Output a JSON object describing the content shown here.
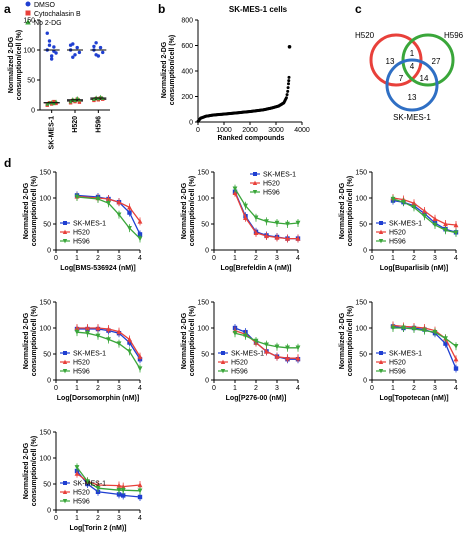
{
  "panels": {
    "a": {
      "letter": "a",
      "ylabel_line1": "Normalized 2-DG",
      "ylabel_line2": "consumption/cell (%)",
      "yticks": [
        "0",
        "50",
        "100",
        "150"
      ],
      "categories": [
        "SK-MES-1",
        "H520",
        "H596"
      ],
      "legend": [
        {
          "label": "DMSO",
          "color": "#1f3fd1",
          "marker": "circle"
        },
        {
          "label": "Cytochalasin B",
          "color": "#e8403a",
          "marker": "square"
        },
        {
          "label": "No 2-DG",
          "color": "#3aa63a",
          "marker": "triangle"
        }
      ],
      "chart_data": {
        "type": "scatter",
        "categories": [
          "SK-MES-1",
          "H520",
          "H596"
        ],
        "ylim": [
          0,
          150
        ],
        "series": [
          {
            "name": "DMSO",
            "means": [
              100,
              100,
              100
            ],
            "points": [
              [
                100,
                115,
                90,
                105,
                95,
                128,
                108,
                85,
                98
              ],
              [
                100,
                110,
                92,
                104,
                96,
                108,
                88
              ],
              [
                100,
                112,
                90,
                104,
                96,
                106,
                92
              ]
            ]
          },
          {
            "name": "Cytochalasin B",
            "means": [
              12,
              15,
              18
            ],
            "points": [
              [
                8,
                12,
                10,
                14,
                11
              ],
              [
                12,
                16,
                14,
                18,
                13
              ],
              [
                16,
                19,
                17,
                20,
                18
              ]
            ]
          },
          {
            "name": "No 2-DG",
            "means": [
              12,
              17,
              20
            ],
            "points": [
              [
                10,
                12,
                13,
                11,
                14
              ],
              [
                14,
                18,
                16,
                20,
                17
              ],
              [
                18,
                21,
                19,
                22,
                20
              ]
            ]
          }
        ]
      }
    },
    "b": {
      "letter": "b",
      "title": "SK-MES-1 cells",
      "ylabel_line1": "Normalized 2-DG",
      "ylabel_line2": "consumption/cell (%)",
      "xlabel": "Ranked compounds",
      "yticks": [
        "0",
        "200",
        "400",
        "600",
        "800"
      ],
      "xticks": [
        "0",
        "1000",
        "2000",
        "3000",
        "4000"
      ],
      "chart_data": {
        "type": "scatter",
        "xlim": [
          0,
          4000
        ],
        "ylim": [
          0,
          800
        ],
        "x": [
          0,
          100,
          300,
          600,
          1000,
          1500,
          2000,
          2500,
          2800,
          3100,
          3300,
          3400,
          3450,
          3480,
          3500,
          3520
        ],
        "y": [
          5,
          30,
          45,
          55,
          62,
          72,
          82,
          95,
          108,
          125,
          150,
          190,
          240,
          300,
          350,
          590
        ]
      }
    },
    "c": {
      "letter": "c",
      "labels": [
        "H520",
        "H596",
        "SK-MES-1"
      ],
      "regions": [
        "13",
        "27",
        "1",
        "4",
        "7",
        "14",
        "13"
      ],
      "colors": [
        "#e8403a",
        "#3aa63a",
        "#2f6fc4"
      ]
    },
    "d": {
      "letter": "d",
      "ylabel_line1": "Normalized 2-DG",
      "ylabel_line2": "consumption/cell (%)",
      "yticks": [
        "0",
        "50",
        "100",
        "150"
      ],
      "xticks": [
        "0",
        "1",
        "2",
        "3",
        "4"
      ],
      "series_legend": [
        {
          "label": "SK-MES-1",
          "color": "#1f3fd1",
          "marker": "square"
        },
        {
          "label": "H520",
          "color": "#e8403a",
          "marker": "triangle-up"
        },
        {
          "label": "H596",
          "color": "#3aa63a",
          "marker": "triangle-down"
        }
      ],
      "charts": [
        {
          "xlabel": "Log[BMS-536924 (nM)]",
          "legend_pos": "bottom-left",
          "chart_data": {
            "type": "line",
            "x": [
              1,
              2,
              2.5,
              3,
              3.5,
              4
            ],
            "xlim": [
              0,
              4
            ],
            "ylim": [
              0,
              150
            ],
            "series": [
              {
                "values": [
                  105,
                  102,
                  98,
                  92,
                  72,
                  30
                ]
              },
              {
                "values": [
                  103,
                  100,
                  98,
                  92,
                  82,
                  55
                ]
              },
              {
                "values": [
                  102,
                  98,
                  90,
                  68,
                  42,
                  22
                ]
              }
            ]
          }
        },
        {
          "xlabel": "Log[Brefeldin A (nM)]",
          "legend_pos": "top-right",
          "chart_data": {
            "type": "line",
            "x": [
              1,
              1.5,
              2,
              2.5,
              3,
              3.5,
              4
            ],
            "xlim": [
              0,
              4
            ],
            "ylim": [
              0,
              150
            ],
            "series": [
              {
                "values": [
                  112,
                  65,
                  35,
                  28,
                  25,
                  22,
                  22
                ]
              },
              {
                "values": [
                  110,
                  62,
                  33,
                  27,
                  24,
                  22,
                  22
                ]
              },
              {
                "values": [
                  118,
                  85,
                  62,
                  55,
                  52,
                  50,
                  52
                ]
              }
            ]
          }
        },
        {
          "xlabel": "Log[Buparlisib (nM)]",
          "legend_pos": "bottom-left",
          "chart_data": {
            "type": "line",
            "x": [
              1,
              1.5,
              2,
              2.5,
              3,
              3.5,
              4
            ],
            "xlim": [
              0,
              4
            ],
            "ylim": [
              0,
              150
            ],
            "series": [
              {
                "values": [
                  95,
                  92,
                  85,
                  70,
                  52,
                  40,
                  34
                ]
              },
              {
                "values": [
                  100,
                  97,
                  90,
                  75,
                  60,
                  50,
                  48
                ]
              },
              {
                "values": [
                  98,
                  92,
                  82,
                  65,
                  48,
                  38,
                  33
                ]
              }
            ]
          }
        },
        {
          "xlabel": "Log[Dorsomorphin (nM)]",
          "legend_pos": "bottom-left",
          "chart_data": {
            "type": "line",
            "x": [
              1,
              1.5,
              2,
              2.5,
              3,
              3.5,
              4
            ],
            "xlim": [
              0,
              4
            ],
            "ylim": [
              0,
              150
            ],
            "series": [
              {
                "values": [
                  98,
                  98,
                  98,
                  95,
                  90,
                  72,
                  40
                ]
              },
              {
                "values": [
                  100,
                  100,
                  100,
                  98,
                  93,
                  78,
                  45
                ]
              },
              {
                "values": [
                  92,
                  90,
                  85,
                  78,
                  70,
                  55,
                  22
                ]
              }
            ]
          }
        },
        {
          "xlabel": "Log[P276-00 (nM)]",
          "legend_pos": "bottom-left",
          "chart_data": {
            "type": "line",
            "x": [
              1,
              1.5,
              2,
              2.5,
              3,
              3.5,
              4
            ],
            "xlim": [
              0,
              4
            ],
            "ylim": [
              0,
              150
            ],
            "series": [
              {
                "values": [
                  100,
                  92,
                  72,
                  55,
                  45,
                  40,
                  40
                ]
              },
              {
                "values": [
                  95,
                  88,
                  72,
                  55,
                  45,
                  42,
                  42
                ]
              },
              {
                "values": [
                  90,
                  85,
                  75,
                  68,
                  64,
                  62,
                  62
                ]
              }
            ]
          }
        },
        {
          "xlabel": "Log[Topotecan (nM)]",
          "legend_pos": "bottom-left",
          "chart_data": {
            "type": "line",
            "x": [
              1,
              1.5,
              2,
              2.5,
              3,
              3.5,
              4
            ],
            "xlim": [
              0,
              4
            ],
            "ylim": [
              0,
              150
            ],
            "series": [
              {
                "values": [
                  103,
                  100,
                  100,
                  97,
                  90,
                  70,
                  22
                ]
              },
              {
                "values": [
                  105,
                  103,
                  102,
                  100,
                  95,
                  80,
                  40
                ]
              },
              {
                "values": [
                  100,
                  100,
                  98,
                  95,
                  92,
                  80,
                  65
                ]
              }
            ]
          }
        },
        {
          "xlabel": "Log[Torin 2 (nM)]",
          "legend_pos": "bottom-left",
          "chart_data": {
            "type": "line",
            "x": [
              1,
              1.5,
              2,
              3,
              3.2,
              4
            ],
            "xlim": [
              0,
              4
            ],
            "ylim": [
              0,
              150
            ],
            "series": [
              {
                "values": [
                  75,
                  50,
                  35,
                  30,
                  28,
                  25
                ]
              },
              {
                "values": [
                  70,
                  55,
                  48,
                  47,
                  45,
                  48
                ]
              },
              {
                "values": [
                  82,
                  55,
                  42,
                  38,
                  38,
                  37
                ]
              }
            ]
          }
        }
      ]
    }
  }
}
